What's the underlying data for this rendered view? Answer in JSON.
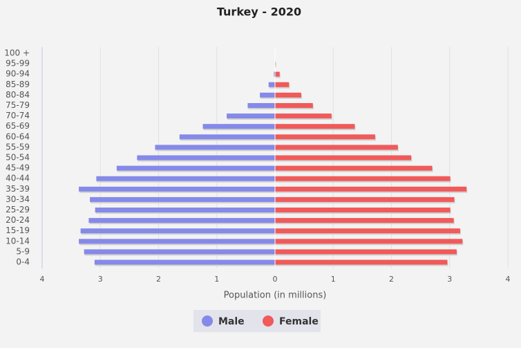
{
  "chart_data": {
    "type": "pyramid",
    "title": "Turkey - 2020",
    "x_label": "Population (in millions)",
    "categories": [
      "100 +",
      "95-99",
      "90-94",
      "85-89",
      "80-84",
      "75-79",
      "70-74",
      "65-69",
      "60-64",
      "55-59",
      "50-54",
      "45-49",
      "40-44",
      "35-39",
      "30-34",
      "25-29",
      "20-24",
      "15-19",
      "10-14",
      "5-9",
      "0-4"
    ],
    "series": [
      {
        "name": "Male",
        "color": "#8589e8",
        "values": [
          0,
          -0.003,
          -0.02,
          -0.11,
          -0.26,
          -0.47,
          -0.83,
          -1.24,
          -1.64,
          -2.06,
          -2.37,
          -2.72,
          -3.07,
          -3.37,
          -3.18,
          -3.09,
          -3.2,
          -3.34,
          -3.37,
          -3.28,
          -3.1
        ]
      },
      {
        "name": "Female",
        "color": "#f05a5a",
        "values": [
          0,
          0.01,
          0.08,
          0.24,
          0.45,
          0.65,
          0.97,
          1.37,
          1.72,
          2.11,
          2.34,
          2.7,
          3.01,
          3.29,
          3.08,
          3.01,
          3.07,
          3.18,
          3.22,
          3.12,
          2.96
        ]
      }
    ],
    "xlim": [
      -4,
      4
    ],
    "xticks": [
      {
        "value": -4,
        "label": "4"
      },
      {
        "value": -3,
        "label": "3"
      },
      {
        "value": -2,
        "label": "2"
      },
      {
        "value": -1,
        "label": "1"
      },
      0,
      1,
      2,
      3,
      4
    ],
    "grid": true,
    "legend": "bottom"
  }
}
